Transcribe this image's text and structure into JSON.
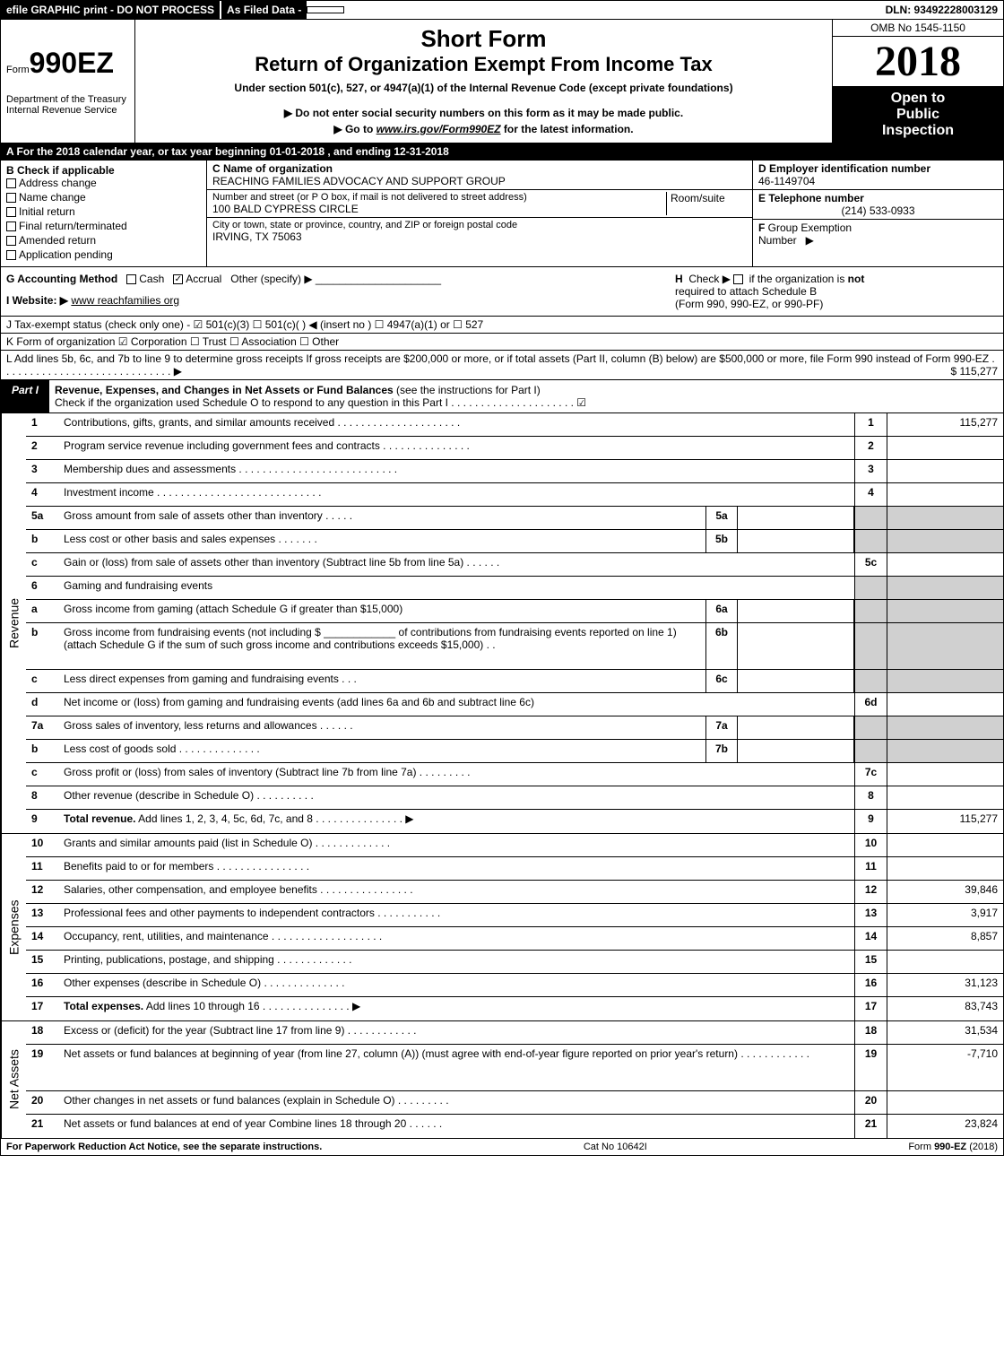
{
  "top": {
    "efile": "efile GRAPHIC print - DO NOT PROCESS",
    "asfiled": "As Filed Data -",
    "dln": "DLN: 93492228003129"
  },
  "header": {
    "form_prefix": "Form",
    "form_number": "990EZ",
    "dept": "Department of the Treasury",
    "irs": "Internal Revenue Service",
    "short_form": "Short Form",
    "title": "Return of Organization Exempt From Income Tax",
    "under": "Under section 501(c), 527, or 4947(a)(1) of the Internal Revenue Code (except private foundations)",
    "donot": "▶ Do not enter social security numbers on this form as it may be made public.",
    "goto_pre": "▶ Go to ",
    "goto_link": "www.irs.gov/Form990EZ",
    "goto_post": " for the latest information.",
    "omb": "OMB No 1545-1150",
    "year": "2018",
    "inspect1": "Open to",
    "inspect2": "Public",
    "inspect3": "Inspection"
  },
  "section_a": "A  For the 2018 calendar year, or tax year beginning 01-01-2018          , and ending 12-31-2018",
  "section_b": {
    "label": "B Check if applicable",
    "items": [
      "Address change",
      "Name change",
      "Initial return",
      "Final return/terminated",
      "Amended return",
      "Application pending"
    ]
  },
  "section_c": {
    "label": "C Name of organization",
    "name": "REACHING FAMILIES ADVOCACY AND SUPPORT GROUP",
    "addr_label": "Number and street (or P O box, if mail is not delivered to street address)",
    "room_label": "Room/suite",
    "addr": "100 BALD CYPRESS CIRCLE",
    "city_label": "City or town, state or province, country, and ZIP or foreign postal code",
    "city": "IRVING, TX  75063"
  },
  "section_d": {
    "label": "D Employer identification number",
    "value": "46-1149704"
  },
  "section_e": {
    "label": "E Telephone number",
    "value": "(214) 533-0933"
  },
  "section_f": {
    "label": "F Group Exemption Number  ▶",
    "value": ""
  },
  "section_g": {
    "prefix": "G Accounting Method",
    "cash": "Cash",
    "accrual": "Accrual",
    "other": "Other (specify) ▶"
  },
  "section_h": {
    "text1": "H  Check ▶  ☐  if the organization is ",
    "not": "not",
    "text2": " required to attach Schedule B",
    "text3": "(Form 990, 990-EZ, or 990-PF)"
  },
  "section_i": {
    "label": "I Website: ▶",
    "value": "www reachfamilies org"
  },
  "section_j": "J Tax-exempt status (check only one) - ☑ 501(c)(3)  ☐ 501(c)(  ) ◀ (insert no ) ☐ 4947(a)(1) or ☐ 527",
  "section_k": "K Form of organization    ☑ Corporation  ☐ Trust  ☐ Association  ☐ Other",
  "section_l": {
    "text": "L Add lines 5b, 6c, and 7b to line 9 to determine gross receipts  If gross receipts are $200,000 or more, or if total assets (Part II, column (B) below) are $500,000 or more, file Form 990 instead of Form 990-EZ  . . . . . . . . . . . . . . . . . . . . . . . . . . . . . ▶",
    "amount": "$ 115,277"
  },
  "part1": {
    "tab": "Part I",
    "title_b": "Revenue, Expenses, and Changes in Net Assets or Fund Balances",
    "title_rest": " (see the instructions for Part I)",
    "subtitle": "Check if the organization used Schedule O to respond to any question in this Part I . . . . . . . . . . . . . . . . . . . . . ☑"
  },
  "sections": {
    "revenue": "Revenue",
    "expenses": "Expenses",
    "netassets": "Net Assets"
  },
  "lines": [
    {
      "num": "1",
      "desc": "Contributions, gifts, grants, and similar amounts received . . . . . . . . . . . . . . . . . . . . .",
      "rnum": "1",
      "rval": "115,277"
    },
    {
      "num": "2",
      "desc": "Program service revenue including government fees and contracts . . . . . . . . . . . . . . .",
      "rnum": "2",
      "rval": ""
    },
    {
      "num": "3",
      "desc": "Membership dues and assessments . . . . . . . . . . . . . . . . . . . . . . . . . . .",
      "rnum": "3",
      "rval": ""
    },
    {
      "num": "4",
      "desc": "Investment income . . . . . . . . . . . . . . . . . . . . . . . . . . . .",
      "rnum": "4",
      "rval": ""
    },
    {
      "num": "5a",
      "desc": "Gross amount from sale of assets other than inventory . . . . .",
      "mid": "5a",
      "midval": "",
      "gray_r": true
    },
    {
      "num": "b",
      "desc": "Less  cost or other basis and sales expenses . . . . . . .",
      "mid": "5b",
      "midval": "",
      "gray_r": true
    },
    {
      "num": "c",
      "desc": "Gain or (loss) from sale of assets other than inventory (Subtract line 5b from line 5a) . . . . . .",
      "rnum": "5c",
      "rval": ""
    },
    {
      "num": "6",
      "desc": "Gaming and fundraising events",
      "gray_r": true,
      "nornum": true
    },
    {
      "num": "a",
      "desc": "Gross income from gaming (attach Schedule G if greater than $15,000)",
      "mid": "6a",
      "midval": "",
      "gray_r": true
    },
    {
      "num": "b",
      "desc": "Gross income from fundraising events (not including $ ____________ of contributions from fundraising events reported on line 1) (attach Schedule G if the sum of such gross income and contributions exceeds $15,000)   . .",
      "mid": "6b",
      "midval": "",
      "gray_r": true,
      "tall": true
    },
    {
      "num": "c",
      "desc": "Less  direct expenses from gaming and fundraising events    . . .",
      "mid": "6c",
      "midval": "",
      "gray_r": true
    },
    {
      "num": "d",
      "desc": "Net income or (loss) from gaming and fundraising events (add lines 6a and 6b and subtract line 6c)",
      "rnum": "6d",
      "rval": ""
    },
    {
      "num": "7a",
      "desc": "Gross sales of inventory, less returns and allowances . . . . . .",
      "mid": "7a",
      "midval": "",
      "gray_r": true
    },
    {
      "num": "b",
      "desc": "Less  cost of goods sold         . . . . . . . . . . . . . .",
      "mid": "7b",
      "midval": "",
      "gray_r": true
    },
    {
      "num": "c",
      "desc": "Gross profit or (loss) from sales of inventory (Subtract line 7b from line 7a) . . . . . . . . .",
      "rnum": "7c",
      "rval": ""
    },
    {
      "num": "8",
      "desc": "Other revenue (describe in Schedule O)                 . . . . . . . . . .",
      "rnum": "8",
      "rval": ""
    },
    {
      "num": "9",
      "desc": "Total revenue. Add lines 1, 2, 3, 4, 5c, 6d, 7c, and 8  . . . . . . . . . . . . . . .  ▶",
      "rnum": "9",
      "rval": "115,277",
      "bold": true
    }
  ],
  "exp_lines": [
    {
      "num": "10",
      "desc": "Grants and similar amounts paid (list in Schedule O)        . . . . . . . . . . . . .",
      "rnum": "10",
      "rval": ""
    },
    {
      "num": "11",
      "desc": "Benefits paid to or for members            . . . . . . . . . . . . . . . .",
      "rnum": "11",
      "rval": ""
    },
    {
      "num": "12",
      "desc": "Salaries, other compensation, and employee benefits . . . . . . . . . . . . . . . .",
      "rnum": "12",
      "rval": "39,846"
    },
    {
      "num": "13",
      "desc": "Professional fees and other payments to independent contractors  . . . . . . . . . . .",
      "rnum": "13",
      "rval": "3,917"
    },
    {
      "num": "14",
      "desc": "Occupancy, rent, utilities, and maintenance . . . . . . . . . . . . . . . . . . .",
      "rnum": "14",
      "rval": "8,857"
    },
    {
      "num": "15",
      "desc": "Printing, publications, postage, and shipping           . . . . . . . . . . . . .",
      "rnum": "15",
      "rval": ""
    },
    {
      "num": "16",
      "desc": "Other expenses (describe in Schedule O)           . . . . . . . . . . . . . .",
      "rnum": "16",
      "rval": "31,123"
    },
    {
      "num": "17",
      "desc": "Total expenses. Add lines 10 through 16       . . . . . . . . . . . . . . .  ▶",
      "rnum": "17",
      "rval": "83,743",
      "bold": true
    }
  ],
  "net_lines": [
    {
      "num": "18",
      "desc": "Excess or (deficit) for the year (Subtract line 17 from line 9)    . . . . . . . . . . . .",
      "rnum": "18",
      "rval": "31,534"
    },
    {
      "num": "19",
      "desc": "Net assets or fund balances at beginning of year (from line 27, column (A)) (must agree with end-of-year figure reported on prior year's return)          . . . . . . . . . . . .",
      "rnum": "19",
      "rval": "-7,710",
      "tall": true
    },
    {
      "num": "20",
      "desc": "Other changes in net assets or fund balances (explain in Schedule O)    . . . . . . . . .",
      "rnum": "20",
      "rval": ""
    },
    {
      "num": "21",
      "desc": "Net assets or fund balances at end of year  Combine lines 18 through 20       . . . . . .",
      "rnum": "21",
      "rval": "23,824"
    }
  ],
  "footer": {
    "left": "For Paperwork Reduction Act Notice, see the separate instructions.",
    "center": "Cat No 10642I",
    "right_pre": "Form ",
    "right_b": "990-EZ",
    "right_post": " (2018)"
  },
  "colors": {
    "black": "#000000",
    "white": "#ffffff",
    "gray": "#d0d0d0"
  }
}
